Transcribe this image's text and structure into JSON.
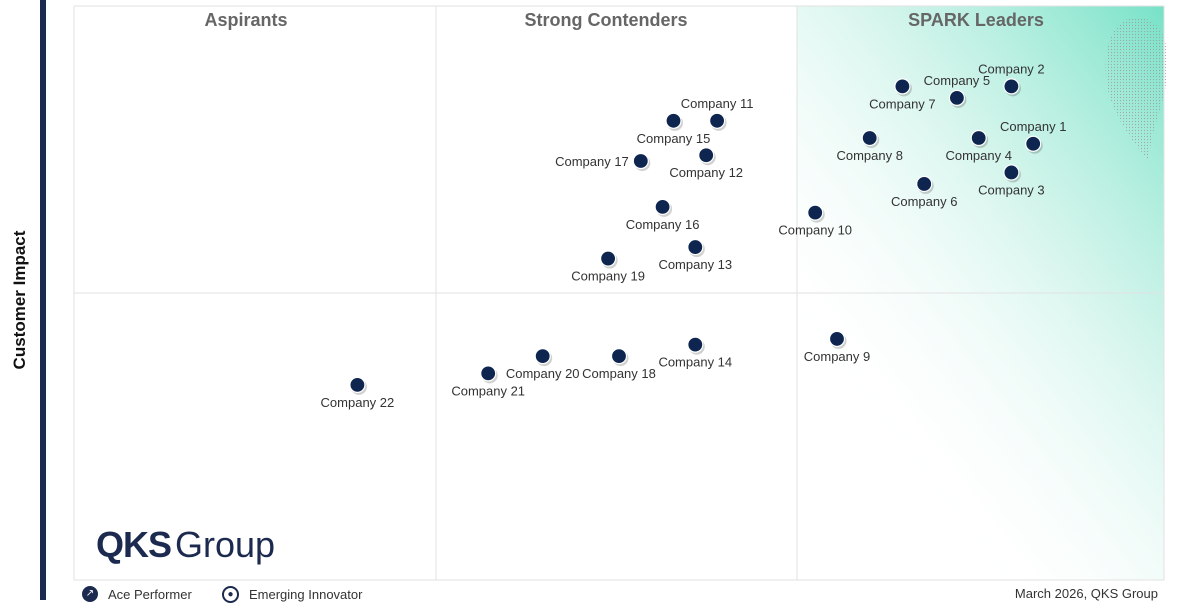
{
  "chart_data": {
    "type": "scatter",
    "ylabel": "Customer Impact",
    "xlabel": "",
    "quadrants": [
      "Aspirants",
      "Strong Contenders",
      "SPARK Leaders"
    ],
    "points": [
      {
        "name": "Company 1",
        "x": 8.8,
        "y": 7.6,
        "label_pos": "above"
      },
      {
        "name": "Company 2",
        "x": 8.6,
        "y": 8.6,
        "label_pos": "above"
      },
      {
        "name": "Company 3",
        "x": 8.6,
        "y": 7.1,
        "label_pos": "below"
      },
      {
        "name": "Company 4",
        "x": 8.3,
        "y": 7.7,
        "label_pos": "below"
      },
      {
        "name": "Company 5",
        "x": 8.1,
        "y": 8.4,
        "label_pos": "above"
      },
      {
        "name": "Company 7",
        "x": 7.6,
        "y": 8.6,
        "label_pos": "below"
      },
      {
        "name": "Company 8",
        "x": 7.3,
        "y": 7.7,
        "label_pos": "below"
      },
      {
        "name": "Company 6",
        "x": 7.8,
        "y": 6.9,
        "label_pos": "below"
      },
      {
        "name": "Company 10",
        "x": 6.8,
        "y": 6.4,
        "label_pos": "below"
      },
      {
        "name": "Company 9",
        "x": 7.0,
        "y": 4.2,
        "label_pos": "below"
      },
      {
        "name": "Company 11",
        "x": 5.9,
        "y": 8.0,
        "label_pos": "above"
      },
      {
        "name": "Company 15",
        "x": 5.5,
        "y": 8.0,
        "label_pos": "below"
      },
      {
        "name": "Company 12",
        "x": 5.8,
        "y": 7.4,
        "label_pos": "below"
      },
      {
        "name": "Company 17",
        "x": 5.2,
        "y": 7.3,
        "label_pos": "left"
      },
      {
        "name": "Company 16",
        "x": 5.4,
        "y": 6.5,
        "label_pos": "below"
      },
      {
        "name": "Company 13",
        "x": 5.7,
        "y": 5.8,
        "label_pos": "below"
      },
      {
        "name": "Company 19",
        "x": 4.9,
        "y": 5.6,
        "label_pos": "below"
      },
      {
        "name": "Company 14",
        "x": 5.7,
        "y": 4.1,
        "label_pos": "below"
      },
      {
        "name": "Company 18",
        "x": 5.0,
        "y": 3.9,
        "label_pos": "below"
      },
      {
        "name": "Company 20",
        "x": 4.3,
        "y": 3.9,
        "label_pos": "below"
      },
      {
        "name": "Company 21",
        "x": 3.8,
        "y": 3.6,
        "label_pos": "below"
      },
      {
        "name": "Company 22",
        "x": 2.6,
        "y": 3.4,
        "label_pos": "below"
      }
    ]
  },
  "branding": {
    "logo_bold": "QKS",
    "logo_rest": "Group"
  },
  "legend": {
    "items": [
      {
        "label": "Ace Performer",
        "icon": "trend-up-icon"
      },
      {
        "label": "Emerging Innovator",
        "icon": "bulb-icon"
      }
    ]
  },
  "footer": {
    "text": "March 2026, QKS Group"
  },
  "colors": {
    "dot": "#0e2550",
    "accent_gradient": "#6fe0c4",
    "bar": "#1b2a4e"
  }
}
